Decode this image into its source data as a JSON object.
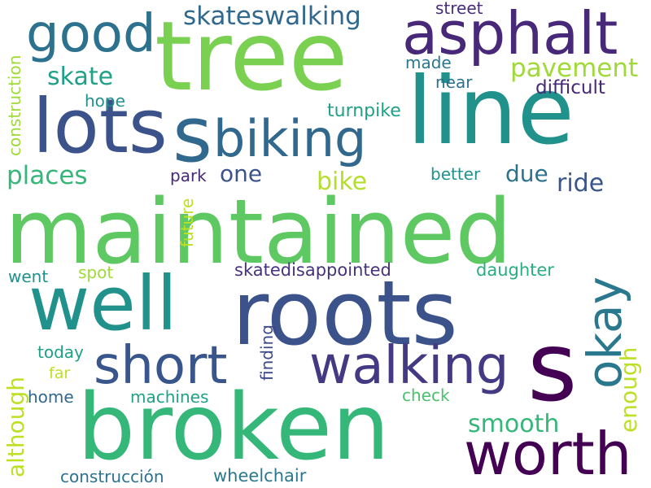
{
  "words": [
    {
      "text": "maintained",
      "color": "#5ec962",
      "vertical": false
    },
    {
      "text": "roots",
      "color": "#3b528b",
      "vertical": false
    },
    {
      "text": "broken",
      "color": "#35b779",
      "vertical": false
    },
    {
      "text": "tree",
      "color": "#7ad151",
      "vertical": false
    },
    {
      "text": "line",
      "color": "#21918c",
      "vertical": false
    },
    {
      "text": "s",
      "color": "#440154",
      "vertical": false
    },
    {
      "text": "lots",
      "color": "#3b528b",
      "vertical": false
    },
    {
      "text": "s",
      "color": "#31688e",
      "vertical": false
    },
    {
      "text": "well",
      "color": "#21918c",
      "vertical": false
    },
    {
      "text": "asphalt",
      "color": "#482878",
      "vertical": false
    },
    {
      "text": "worth",
      "color": "#440154",
      "vertical": false
    },
    {
      "text": "biking",
      "color": "#31688e",
      "vertical": false
    },
    {
      "text": "good",
      "color": "#2c728e",
      "vertical": false
    },
    {
      "text": "short",
      "color": "#39568c",
      "vertical": false
    },
    {
      "text": "walking",
      "color": "#443a83",
      "vertical": false
    },
    {
      "text": "okay",
      "color": "#2a788e",
      "vertical": true
    },
    {
      "text": "skateswalking",
      "color": "#31688e",
      "vertical": false
    },
    {
      "text": "pavement",
      "color": "#a0da39",
      "vertical": false
    },
    {
      "text": "smooth",
      "color": "#35b779",
      "vertical": false
    },
    {
      "text": "enough",
      "color": "#bddf26",
      "vertical": true
    },
    {
      "text": "although",
      "color": "#bddf26",
      "vertical": true
    },
    {
      "text": "places",
      "color": "#35b779",
      "vertical": false
    },
    {
      "text": "skate",
      "color": "#1fa187",
      "vertical": false
    },
    {
      "text": "one",
      "color": "#3b528b",
      "vertical": false
    },
    {
      "text": "bike",
      "color": "#b5de2b",
      "vertical": false
    },
    {
      "text": "due",
      "color": "#2c728e",
      "vertical": false
    },
    {
      "text": "ride",
      "color": "#39568c",
      "vertical": false
    },
    {
      "text": "street",
      "color": "#472d7b",
      "vertical": false
    },
    {
      "text": "made",
      "color": "#2a788e",
      "vertical": false
    },
    {
      "text": "near",
      "color": "#2c728e",
      "vertical": false
    },
    {
      "text": "difficult",
      "color": "#482878",
      "vertical": false
    },
    {
      "text": "hope",
      "color": "#21918c",
      "vertical": false
    },
    {
      "text": "turnpike",
      "color": "#1fa187",
      "vertical": false
    },
    {
      "text": "construction",
      "color": "#a0da39",
      "vertical": true
    },
    {
      "text": "park",
      "color": "#482878",
      "vertical": false
    },
    {
      "text": "better",
      "color": "#21918c",
      "vertical": false
    },
    {
      "text": "future",
      "color": "#bddf26",
      "vertical": true
    },
    {
      "text": "went",
      "color": "#21918c",
      "vertical": false
    },
    {
      "text": "spot",
      "color": "#a0da39",
      "vertical": false
    },
    {
      "text": "skatedisappointed",
      "color": "#46327e",
      "vertical": false
    },
    {
      "text": "daughter",
      "color": "#28ae80",
      "vertical": false
    },
    {
      "text": "finding",
      "color": "#3e4989",
      "vertical": true
    },
    {
      "text": "today",
      "color": "#1fa187",
      "vertical": false
    },
    {
      "text": "far",
      "color": "#bddf26",
      "vertical": false
    },
    {
      "text": "home",
      "color": "#31688e",
      "vertical": false
    },
    {
      "text": "machines",
      "color": "#1fa187",
      "vertical": false
    },
    {
      "text": "check",
      "color": "#4ac16d",
      "vertical": false
    },
    {
      "text": "construcción",
      "color": "#2c728e",
      "vertical": false
    },
    {
      "text": "wheelchair",
      "color": "#2a788e",
      "vertical": false
    }
  ]
}
